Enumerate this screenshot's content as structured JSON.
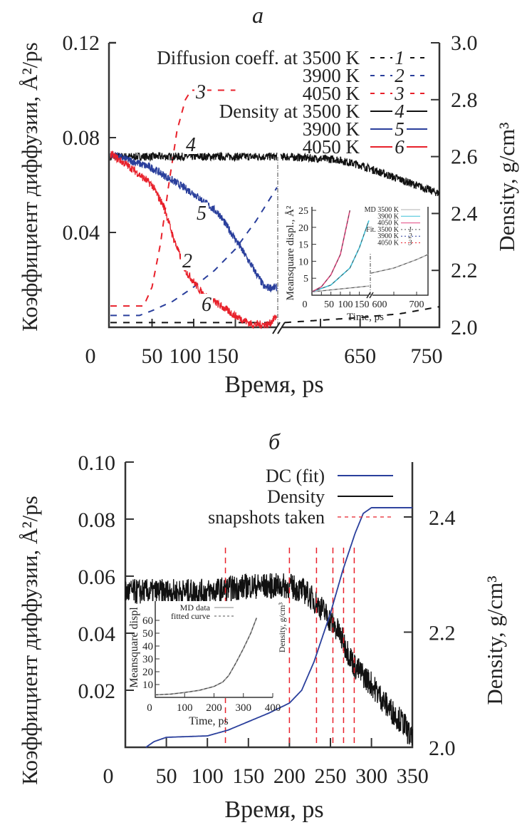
{
  "chart_data": [
    {
      "type": "line",
      "title": "а",
      "xlabel": "Время, ps",
      "ylabel": "Коэффициент диффузии, Å²/ps",
      "y2label": "Density, g/cm³",
      "x_axis_break": [
        200,
        550
      ],
      "xticks": [
        "0",
        "50",
        "100",
        "150",
        "650",
        "750"
      ],
      "xtick_values": [
        0,
        50,
        100,
        150,
        650,
        750
      ],
      "ylim": [
        0,
        0.12
      ],
      "yticks": [
        "0.04",
        "0.08",
        "0.12"
      ],
      "ytick_values": [
        0.04,
        0.08,
        0.12
      ],
      "y2lim": [
        2.0,
        3.0
      ],
      "y2ticks": [
        "2.0",
        "2.2",
        "2.4",
        "2.6",
        "2.8",
        "3.0"
      ],
      "y2tick_values": [
        2.0,
        2.2,
        2.4,
        2.6,
        2.8,
        3.0
      ],
      "legend_position": "top-right",
      "series": [
        {
          "name": "Diffusion coeff. at 3500 K",
          "label": "1",
          "axis": "left",
          "style": "dashed",
          "color": "#111111",
          "x": [
            0,
            200,
            555,
            645,
            700,
            750
          ],
          "y": [
            0.002,
            0.002,
            0.002,
            0.004,
            0.0057,
            0.0087
          ]
        },
        {
          "name": "3900 K",
          "label": "2",
          "axis": "left",
          "style": "dashed",
          "color": "#2a3f9c",
          "x": [
            0,
            35,
            50,
            75,
            100,
            125,
            150,
            175,
            200
          ],
          "y": [
            0.005,
            0.005,
            0.007,
            0.011,
            0.017,
            0.024,
            0.033,
            0.045,
            0.059
          ]
        },
        {
          "name": "4050 K",
          "label": "3",
          "axis": "left",
          "style": "dashed",
          "color": "#e8212b",
          "x": [
            0,
            40,
            50,
            60,
            70,
            80,
            90,
            97,
            150
          ],
          "y": [
            0.009,
            0.009,
            0.017,
            0.035,
            0.06,
            0.083,
            0.096,
            0.1,
            0.1
          ]
        },
        {
          "name": "Density at 3500 K",
          "label": "4",
          "axis": "right",
          "style": "solid",
          "color": "#111111",
          "x": [
            0,
            200,
            550,
            620,
            650,
            700,
            750
          ],
          "y": [
            2.6,
            2.6,
            2.6,
            2.59,
            2.57,
            2.52,
            2.47
          ]
        },
        {
          "name": "3900 K",
          "label": "5",
          "axis": "right",
          "style": "solid",
          "color": "#2a3f9c",
          "x": [
            0,
            50,
            100,
            130,
            150,
            175,
            185,
            200
          ],
          "y": [
            2.61,
            2.56,
            2.47,
            2.4,
            2.31,
            2.19,
            2.14,
            2.14
          ]
        },
        {
          "name": "4050 K",
          "label": "6",
          "axis": "right",
          "style": "solid",
          "color": "#e8212b",
          "x": [
            0,
            25,
            50,
            65,
            75,
            90,
            110,
            150,
            170,
            190,
            200
          ],
          "y": [
            2.61,
            2.56,
            2.5,
            2.42,
            2.32,
            2.2,
            2.12,
            2.04,
            2.01,
            2.01,
            2.04
          ]
        }
      ],
      "inset": {
        "xlabel": "Time, ps",
        "ylabel": "Meansquare displ., Å²",
        "x_axis_break": [
          150,
          600
        ],
        "xticks": [
          "0",
          "50",
          "100",
          "150",
          "600",
          "700"
        ],
        "xtick_values": [
          0,
          50,
          100,
          150,
          600,
          700
        ],
        "yticks": [
          "5",
          "10",
          "15",
          "20",
          "25"
        ],
        "ytick_values": [
          5,
          10,
          15,
          20,
          25
        ],
        "ylim": [
          0,
          25
        ],
        "legend_rows": [
          {
            "text": "MD 3500 K",
            "mark": "",
            "color": "#b0b0b0",
            "style": "solid"
          },
          {
            "text": "3900 K",
            "mark": "",
            "color": "#3fc0d8",
            "style": "solid"
          },
          {
            "text": "4050 K",
            "mark": "",
            "color": "#e2457f",
            "style": "solid"
          },
          {
            "text": "Fit. 3500 K",
            "mark": "1",
            "color": "#555555",
            "style": "dashed"
          },
          {
            "text": "3900 K",
            "mark": "2",
            "color": "#2a3f9c",
            "style": "dashed"
          },
          {
            "text": "4050 K",
            "mark": "3",
            "color": "#e8212b",
            "style": "dashed"
          }
        ],
        "series": [
          {
            "name": "MD 3500 K",
            "color": "#b0b0b0",
            "x": [
              0,
              150,
              600,
              650,
              700,
              725
            ],
            "y": [
              1,
              2.7,
              6.5,
              8,
              10.5,
              12
            ]
          },
          {
            "name": "MD 3900 K",
            "color": "#3fc0d8",
            "x": [
              0,
              50,
              100,
              125,
              150,
              160
            ],
            "y": [
              1,
              3,
              8,
              14,
              22,
              25
            ]
          },
          {
            "name": "MD 4050 K",
            "color": "#e2457f",
            "x": [
              0,
              25,
              50,
              75,
              100
            ],
            "y": [
              1,
              2.5,
              6,
              12,
              25
            ]
          }
        ]
      }
    },
    {
      "type": "line",
      "title": "б",
      "xlabel": "Время, ps",
      "ylabel": "Коэффициент диффузии, Å²/ps",
      "y2label": "Density, g/cm³",
      "xlim": [
        0,
        350
      ],
      "xticks": [
        "0",
        "50",
        "100",
        "150",
        "200",
        "250",
        "300",
        "350"
      ],
      "xtick_values": [
        0,
        50,
        100,
        150,
        200,
        250,
        300,
        350
      ],
      "ylim": [
        0,
        0.1
      ],
      "yticks": [
        "0.02",
        "0.04",
        "0.06",
        "0.08",
        "0.10"
      ],
      "ytick_values": [
        0.02,
        0.04,
        0.06,
        0.08,
        0.1
      ],
      "y2lim": [
        2.0,
        2.5
      ],
      "y2ticks": [
        "2.0",
        "2.2",
        "2.4"
      ],
      "y2tick_values": [
        2.0,
        2.2,
        2.4
      ],
      "legend_position": "top-right",
      "series": [
        {
          "name": "DC (fit)",
          "axis": "left",
          "style": "solid",
          "color": "#2a3f9c",
          "x": [
            25,
            35,
            50,
            100,
            125,
            150,
            175,
            200,
            215,
            230,
            250,
            265,
            280,
            290,
            300,
            350
          ],
          "y": [
            0,
            0.002,
            0.0035,
            0.004,
            0.006,
            0.009,
            0.012,
            0.0155,
            0.02,
            0.03,
            0.047,
            0.062,
            0.075,
            0.082,
            0.084,
            0.084
          ]
        },
        {
          "name": "Density",
          "axis": "right",
          "style": "solid",
          "color": "#111111",
          "x": [
            0,
            100,
            150,
            200,
            220,
            240,
            260,
            280,
            300,
            320,
            340,
            350
          ],
          "y": [
            2.27,
            2.27,
            2.28,
            2.28,
            2.27,
            2.24,
            2.2,
            2.14,
            2.11,
            2.07,
            2.04,
            2.01
          ]
        },
        {
          "name": "snapshots taken",
          "axis": "vertical-lines",
          "style": "dashed",
          "color": "#e8212b",
          "x": [
            122,
            200,
            233,
            253,
            266,
            279
          ]
        }
      ],
      "inset": {
        "xlabel": "Time, ps",
        "ylabel": "Meansquare displ",
        "extra_label": "Density, g/cm³",
        "xticks": [
          "0",
          "100",
          "200",
          "300",
          "400"
        ],
        "xtick_values": [
          0,
          100,
          200,
          300,
          400
        ],
        "yticks": [
          "10",
          "20",
          "30",
          "40",
          "50",
          "60"
        ],
        "ytick_values": [
          10,
          20,
          30,
          40,
          50,
          60
        ],
        "xlim": [
          0,
          400
        ],
        "legend_rows": [
          {
            "text": "MD data",
            "color": "#888888",
            "style": "solid"
          },
          {
            "text": "fitted curve",
            "color": "#555555",
            "style": "dashed"
          }
        ],
        "series": [
          {
            "name": "MD data",
            "color": "#999999",
            "x": [
              0,
              50,
              100,
              150,
              200,
              230,
              250,
              275,
              300,
              325,
              345
            ],
            "y": [
              2,
              2.5,
              3.8,
              5.5,
              8.5,
              12,
              17,
              27,
              38,
              50,
              62
            ]
          }
        ]
      }
    }
  ]
}
